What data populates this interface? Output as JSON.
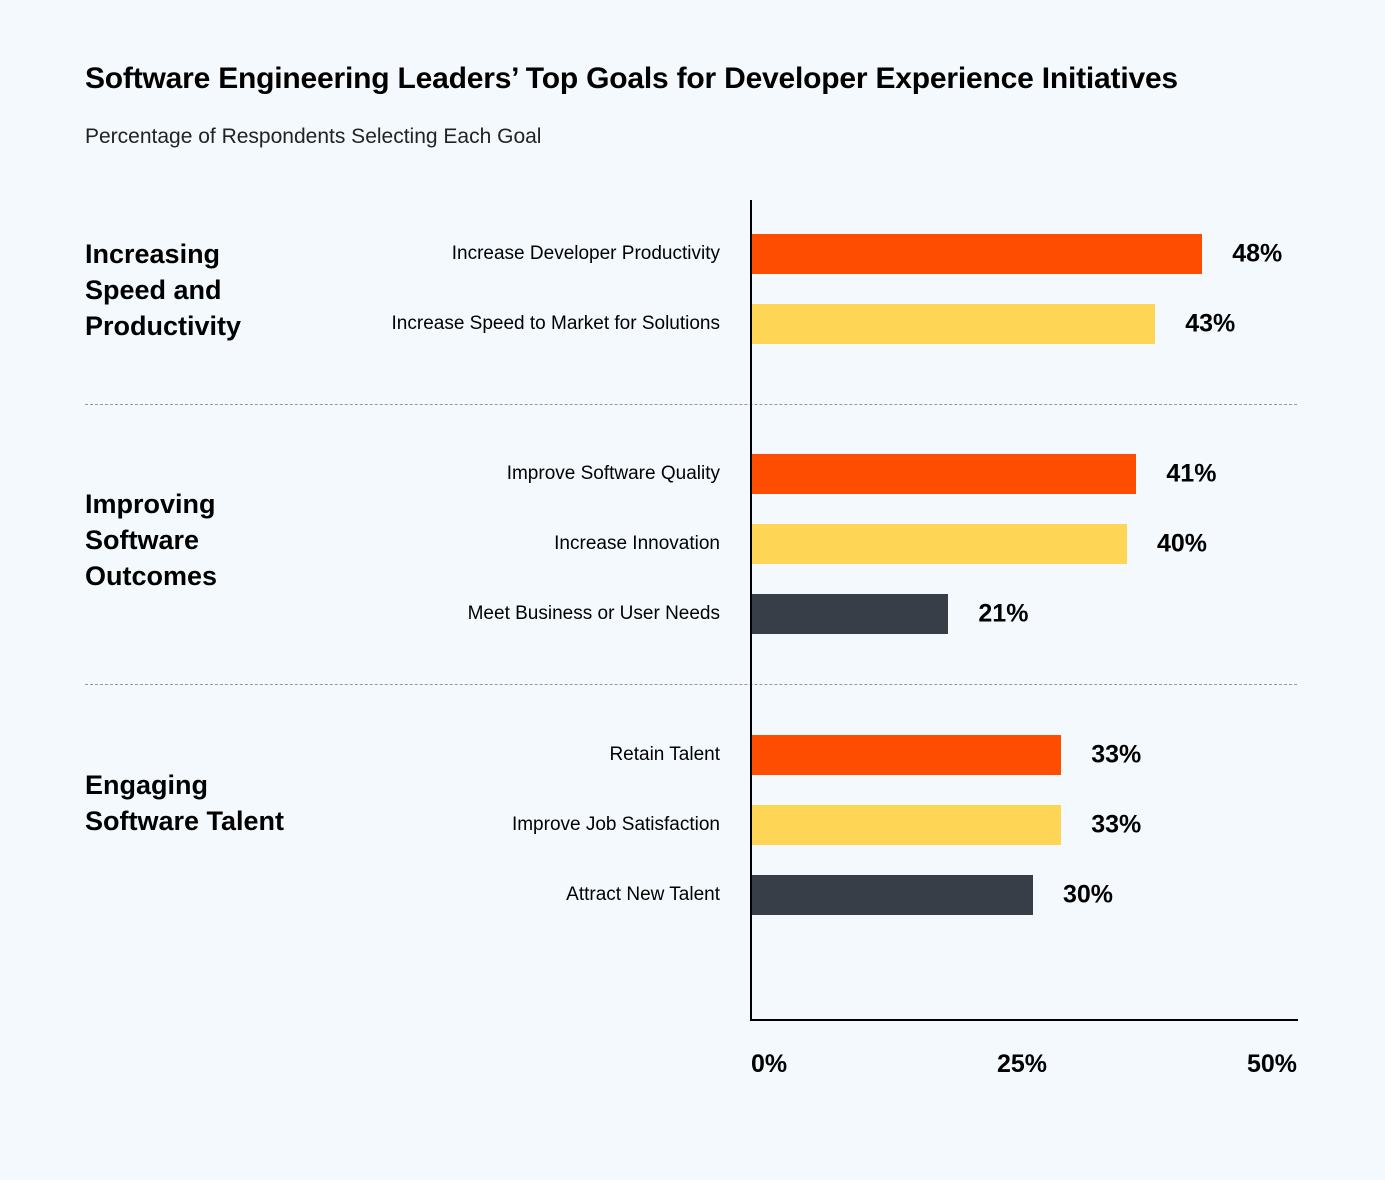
{
  "chart_data": {
    "type": "bar",
    "orientation": "horizontal",
    "title": "Software Engineering Leaders’ Top Goals for Developer Experience Initiatives",
    "subtitle": "Percentage of Respondents Selecting Each Goal",
    "xlim": [
      0,
      50
    ],
    "xticks": [
      "0%",
      "25%",
      "50%"
    ],
    "grid": false,
    "colors": {
      "first": "#FF4D00",
      "second": "#FFD556",
      "third": "#373E48",
      "background": "#F3F9FD"
    },
    "groups": [
      {
        "label": "Increasing Speed and Productivity",
        "items": [
          {
            "category": "Increase Developer Productivity",
            "value": 48,
            "label": "48%",
            "color": "#FF4D00"
          },
          {
            "category": "Increase Speed to Market for Solutions",
            "value": 43,
            "label": "43%",
            "color": "#FFD556"
          }
        ]
      },
      {
        "label": "Improving Software Outcomes",
        "items": [
          {
            "category": "Improve Software Quality",
            "value": 41,
            "label": "41%",
            "color": "#FF4D00"
          },
          {
            "category": "Increase Innovation",
            "value": 40,
            "label": "40%",
            "color": "#FFD556"
          },
          {
            "category": "Meet Business or User Needs",
            "value": 21,
            "label": "21%",
            "color": "#373E48"
          }
        ]
      },
      {
        "label": "Engaging Software Talent",
        "items": [
          {
            "category": "Retain Talent",
            "value": 33,
            "label": "33%",
            "color": "#FF4D00"
          },
          {
            "category": "Improve Job Satisfaction",
            "value": 33,
            "label": "33%",
            "color": "#FFD556"
          },
          {
            "category": "Attract New Talent",
            "value": 30,
            "label": "30%",
            "color": "#373E48"
          }
        ]
      }
    ]
  }
}
